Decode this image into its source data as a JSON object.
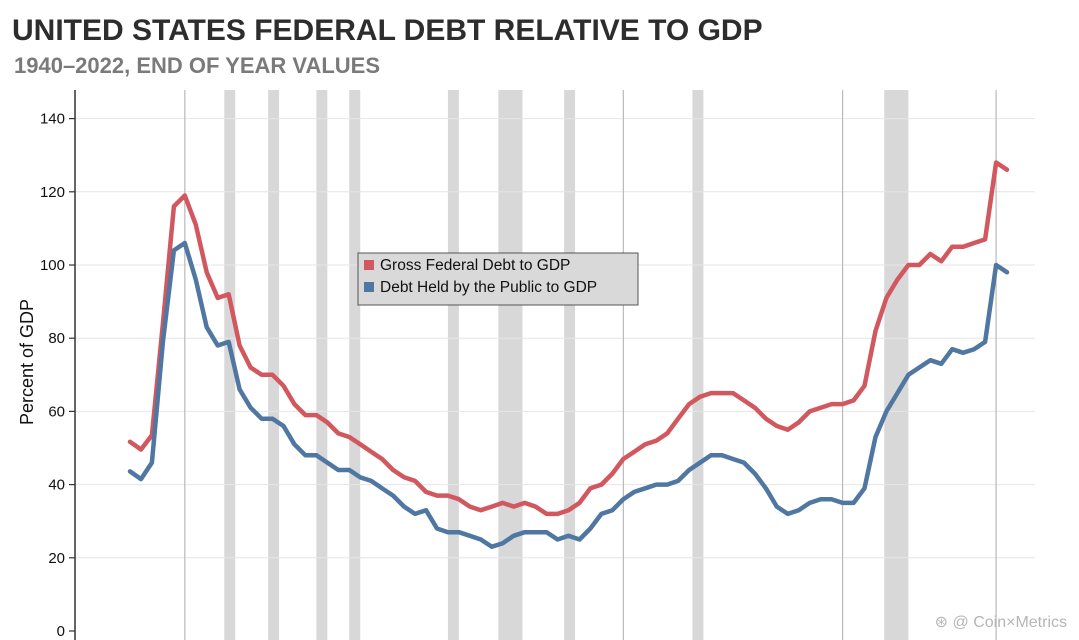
{
  "title": "UNITED STATES FEDERAL DEBT RELATIVE TO GDP",
  "subtitle": "1940–2022, END OF YEAR VALUES",
  "watermark": "⊛ @ Coin×Metrics",
  "chart_data": {
    "type": "line",
    "title": "UNITED STATES FEDERAL DEBT RELATIVE TO GDP",
    "subtitle": "1940–2022, END OF YEAR VALUES",
    "xlabel": "",
    "ylabel": "Percent of GDP",
    "xlim": [
      1936,
      2024
    ],
    "ylim": [
      0,
      150
    ],
    "yticks": [
      0,
      20,
      40,
      60,
      80,
      100,
      120,
      140
    ],
    "legend_position": "center",
    "grid": true,
    "reference_lines_years": [
      1946,
      1986,
      2006,
      2020
    ],
    "recessions": [
      [
        1949.6,
        1950.6
      ],
      [
        1953.6,
        1954.6
      ],
      [
        1958.0,
        1959.0
      ],
      [
        1961.0,
        1962.0
      ],
      [
        1970.0,
        1971.0
      ],
      [
        1974.6,
        1976.8
      ],
      [
        1980.6,
        1981.6
      ],
      [
        1992.3,
        1993.3
      ],
      [
        2009.8,
        2012.0
      ]
    ],
    "colors": {
      "gross": "#d1585e",
      "public": "#4f77a1",
      "recession": "#d8d8d8"
    },
    "x": [
      1941,
      1942,
      1943,
      1944,
      1945,
      1946,
      1947,
      1948,
      1949,
      1950,
      1951,
      1952,
      1953,
      1954,
      1955,
      1956,
      1957,
      1958,
      1959,
      1960,
      1961,
      1962,
      1963,
      1964,
      1965,
      1966,
      1967,
      1968,
      1969,
      1970,
      1971,
      1972,
      1973,
      1974,
      1975,
      1976,
      1977,
      1978,
      1979,
      1980,
      1981,
      1982,
      1983,
      1984,
      1985,
      1986,
      1987,
      1988,
      1989,
      1990,
      1991,
      1992,
      1993,
      1994,
      1995,
      1996,
      1997,
      1998,
      1999,
      2000,
      2001,
      2002,
      2003,
      2004,
      2005,
      2006,
      2007,
      2008,
      2009,
      2010,
      2011,
      2012,
      2013,
      2014,
      2015,
      2016,
      2017,
      2018,
      2019,
      2020,
      2021,
      2022
    ],
    "series": [
      {
        "name": "Gross Federal Debt to GDP",
        "values": [
          51.7,
          49.6,
          53.5,
          84,
          116,
          119,
          111,
          98,
          91,
          92,
          78,
          72,
          70,
          70,
          67,
          62,
          59,
          59,
          57,
          54,
          53,
          51,
          49,
          47,
          44,
          42,
          41,
          38,
          37,
          37,
          36,
          34,
          33,
          34,
          35,
          34,
          35,
          34,
          32,
          32,
          33,
          35,
          39,
          40,
          43,
          47,
          49,
          51,
          52,
          54,
          58,
          62,
          64,
          65,
          65,
          65,
          63,
          61,
          58,
          56,
          55,
          57,
          60,
          61,
          62,
          62,
          63,
          67,
          82,
          91,
          96,
          100,
          100,
          103,
          101,
          105,
          105,
          106,
          107,
          128,
          126,
          null
        ]
      },
      {
        "name": "Debt Held by the Public to GDP",
        "values": [
          43.6,
          41.5,
          46,
          79,
          104,
          106,
          96,
          83,
          78,
          79,
          66,
          61,
          58,
          58,
          56,
          51,
          48,
          48,
          46,
          44,
          44,
          42,
          41,
          39,
          37,
          34,
          32,
          33,
          28,
          27,
          27,
          26,
          25,
          23,
          24,
          26,
          27,
          27,
          27,
          25,
          26,
          25,
          28,
          32,
          33,
          36,
          38,
          39,
          40,
          40,
          41,
          44,
          46,
          48,
          48,
          47,
          46,
          43,
          39,
          34,
          32,
          33,
          35,
          36,
          36,
          35,
          35,
          39,
          53,
          60,
          65,
          70,
          72,
          74,
          73,
          77,
          76,
          77,
          79,
          100,
          98,
          null
        ]
      }
    ]
  }
}
